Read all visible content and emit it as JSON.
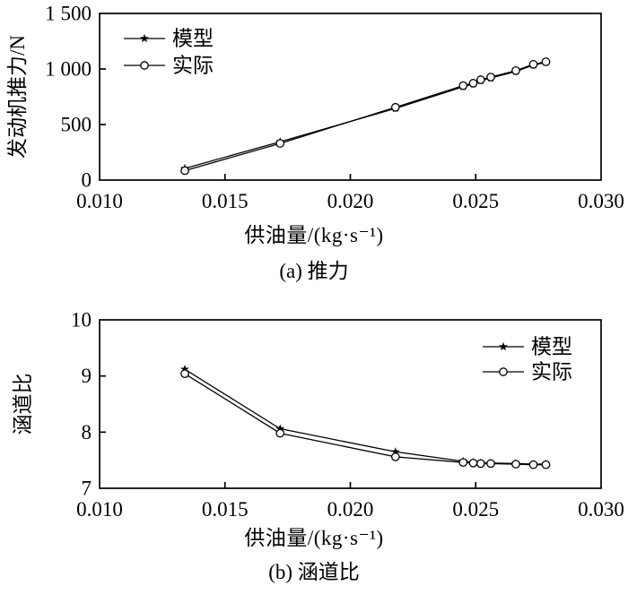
{
  "page": {
    "background": "#ffffff",
    "text_color": "#000000",
    "line_color": "#000000"
  },
  "chart_data": [
    {
      "type": "line",
      "caption": "(a) 推力",
      "xlabel": "供油量/(kg·s⁻¹)",
      "ylabel": "发动机推力/N",
      "xlim": [
        0.01,
        0.03
      ],
      "ylim": [
        0,
        1500
      ],
      "xticks": [
        0.01,
        0.015,
        0.02,
        0.025,
        0.03
      ],
      "xtick_labels": [
        "0.010",
        "0.015",
        "0.020",
        "0.025",
        "0.030"
      ],
      "yticks": [
        0,
        500,
        1000,
        1500
      ],
      "ytick_labels": [
        "0",
        "500",
        "1 000",
        "1 500"
      ],
      "grid": false,
      "legend_position": "top-left",
      "x": [
        0.0134,
        0.0172,
        0.0218,
        0.0245,
        0.0249,
        0.0252,
        0.0256,
        0.0266,
        0.0273,
        0.0278
      ],
      "series": [
        {
          "key": "model",
          "name": "模型",
          "marker": "star",
          "values": [
            105,
            345,
            645,
            840,
            865,
            895,
            918,
            978,
            1035,
            1060
          ]
        },
        {
          "key": "actual",
          "name": "实际",
          "marker": "circle",
          "values": [
            85,
            330,
            655,
            850,
            872,
            903,
            927,
            985,
            1042,
            1065
          ]
        }
      ]
    },
    {
      "type": "line",
      "caption": "(b) 涵道比",
      "xlabel": "供油量/(kg·s⁻¹)",
      "ylabel": "涵道比",
      "xlim": [
        0.01,
        0.03
      ],
      "ylim": [
        7,
        10
      ],
      "xticks": [
        0.01,
        0.015,
        0.02,
        0.025,
        0.03
      ],
      "xtick_labels": [
        "0.010",
        "0.015",
        "0.020",
        "0.025",
        "0.030"
      ],
      "yticks": [
        7,
        8,
        9,
        10
      ],
      "ytick_labels": [
        "7",
        "8",
        "9",
        "10"
      ],
      "grid": false,
      "legend_position": "top-right",
      "x": [
        0.0134,
        0.0172,
        0.0218,
        0.0245,
        0.0249,
        0.0252,
        0.0256,
        0.0266,
        0.0273,
        0.0278
      ],
      "series": [
        {
          "key": "model",
          "name": "模型",
          "marker": "star",
          "values": [
            9.12,
            8.06,
            7.65,
            7.48,
            7.46,
            7.45,
            7.45,
            7.44,
            7.43,
            7.43
          ]
        },
        {
          "key": "actual",
          "name": "实际",
          "marker": "circle",
          "values": [
            9.04,
            7.98,
            7.56,
            7.46,
            7.45,
            7.44,
            7.44,
            7.43,
            7.42,
            7.42
          ]
        }
      ]
    }
  ]
}
